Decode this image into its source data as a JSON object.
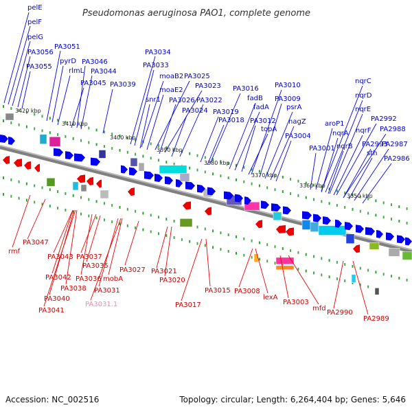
{
  "title": "Pseudomonas aeruginosa PAO1, complete genome",
  "footer": {
    "accession": "Accession: NC_002516",
    "summary": "Topology: circular; Length: 6,264,404 bp; Genes: 5,646"
  },
  "colors": {
    "forward_gene": "#0000ee",
    "reverse_gene": "#ee0000",
    "pseudogene_label": "#ee88bb",
    "backbone": "#808080",
    "ticks": "#22aa22"
  },
  "kbp_labels": [
    "3420 kbp",
    "3410 kbp",
    "3400 kbp",
    "3390 kbp",
    "3380 kbp",
    "3370 kbp",
    "3360 kbp",
    "3350 kbp"
  ],
  "forward_labels": [
    "pelE",
    "pelF",
    "pelG",
    "PA3056",
    "PA3055",
    "PA3051",
    "pyrD",
    "rlmL",
    "PA3046",
    "PA3044",
    "PA3045",
    "PA3039",
    "PA3034",
    "PA3033",
    "moaB2",
    "PA3025",
    "moaE2",
    "snr1",
    "PA3023",
    "PA3026",
    "PA3022",
    "PA3024",
    "PA3016",
    "PA3019",
    "PA3018",
    "fadB",
    "fadA",
    "PA3012",
    "topA",
    "PA3010",
    "PA3009",
    "psrA",
    "nagZ",
    "PA3004",
    "nqrC",
    "nqrD",
    "nqrE",
    "aroP1",
    "nqrA",
    "PA2992",
    "nqrF",
    "PA2988",
    "PA3001",
    "nqrB",
    "PA2993",
    "PA2987",
    "sth",
    "PA2986"
  ],
  "reverse_labels": [
    "rmf",
    "PA3047",
    "PA3043",
    "PA3037",
    "PA3035",
    "PA3042",
    "PA3036",
    "PA3038",
    "PA3031",
    "mobA",
    "PA3040",
    "PA3041",
    "PA3031.1",
    "PA3027",
    "PA3021",
    "PA3020",
    "PA3017",
    "PA3015",
    "PA3008",
    "lexA",
    "PA3003",
    "mfd",
    "PA2990",
    "PA2989"
  ]
}
